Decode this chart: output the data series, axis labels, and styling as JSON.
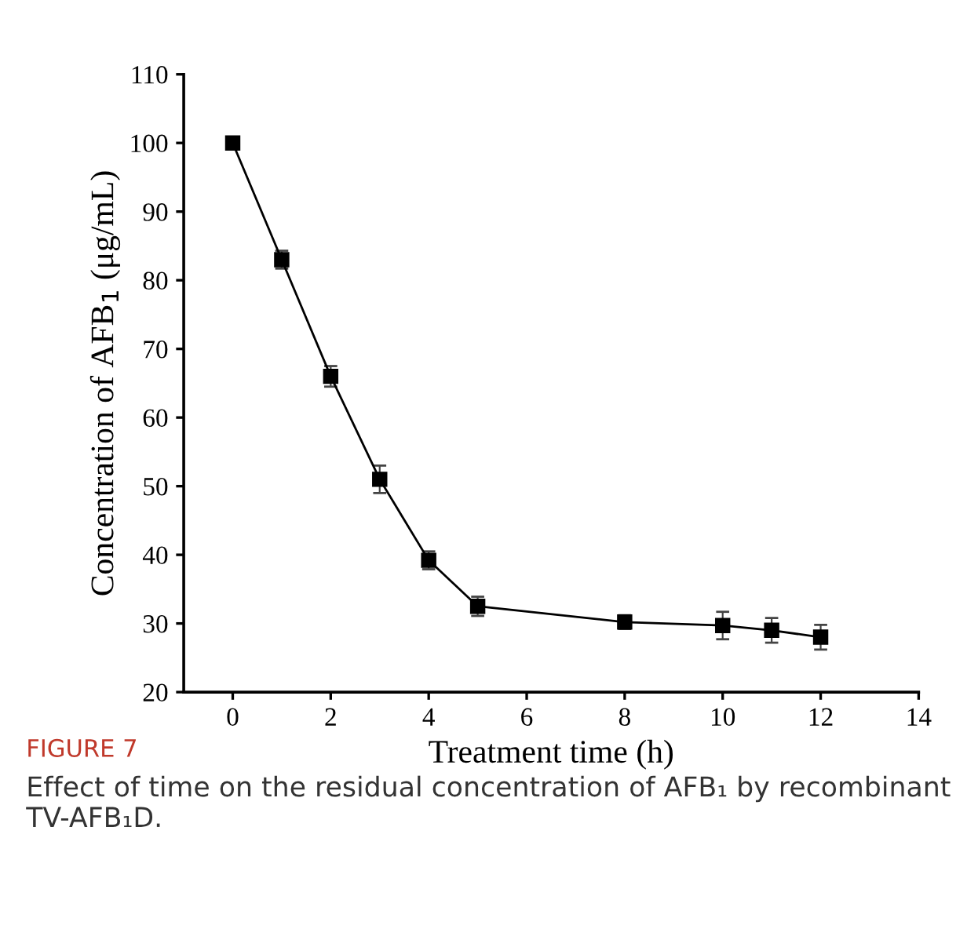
{
  "chart_data": {
    "type": "line",
    "x": [
      0,
      1,
      2,
      3,
      4,
      5,
      8,
      10,
      11,
      12
    ],
    "series": [
      {
        "color": "#000000",
        "values": [
          100,
          83,
          66,
          51,
          39.2,
          32.5,
          30.2,
          29.7,
          29,
          28
        ],
        "errors": [
          0.5,
          1.3,
          1.5,
          2,
          1.3,
          1.4,
          1,
          2,
          1.8,
          1.8
        ]
      }
    ],
    "xlim": [
      -1,
      14
    ],
    "xticks": [
      0,
      2,
      4,
      6,
      8,
      10,
      12,
      14
    ],
    "ylim": [
      20,
      110
    ],
    "yticks": [
      20,
      30,
      40,
      50,
      60,
      70,
      80,
      90,
      100,
      110
    ],
    "xlabel": "Treatment time (h)",
    "ylabel": "Concentration of AFB$_{1}$ (μg/mL)",
    "marker": "square",
    "line_style": "solid",
    "grid": false,
    "legend": false,
    "annotations": [
      "FIGURE 7",
      "Effect of time on the residual concentration of AFB₁ by recombinant TV-AFB₁D."
    ]
  }
}
